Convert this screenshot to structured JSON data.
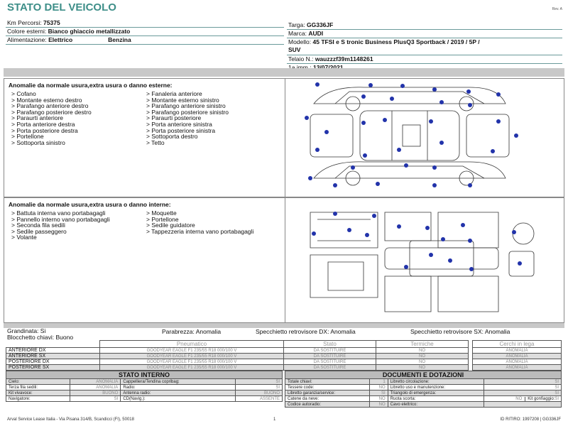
{
  "header": {
    "title": "STATO DEL VEICOLO",
    "rev": "Rev. A"
  },
  "vehicle": {
    "km_label": "Km Percorsi:",
    "km": "75375",
    "colore_label": "Colore esterni:",
    "colore": "Bianco ghiaccio metallizzato",
    "alim_label": "Alimentazione:",
    "alim1": "Elettrico",
    "alim2": "Benzina",
    "targa_label": "Targa:",
    "targa": "GG336JF",
    "marca_label": "Marca:",
    "marca": "AUDI",
    "modello_label": "Modello:",
    "modello": "45 TFSI e S tronic Business PlusQ3 Sportback / 2019 / 5P /",
    "modello2": "SUV",
    "telaio_label": "Telaio N.:",
    "telaio": "wauzzzf39m1148261",
    "imm_label": "1a imm.:",
    "imm": "13/07/2021"
  },
  "esterne": {
    "title": "Anomalie da normale usura,extra usura o danno esterne:",
    "col1": [
      "> Cofano",
      "> Montante esterno destro",
      "> Parafango anteriore destro",
      "> Parafango posteriore destro",
      "> Paraurti anteriore",
      "> Porta anteriore destra",
      "> Porta posteriore destra",
      "> Portellone",
      "> Sottoporta sinistro"
    ],
    "col2": [
      "> Fanaleria anteriore",
      "> Montante esterno sinistro",
      "> Parafango anteriore sinistro",
      "> Parafango posteriore sinistro",
      "> Paraurti posteriore",
      "> Porta anteriore sinistra",
      "> Porta posteriore sinistra",
      "> Sottoporta destro",
      "> Tetto"
    ]
  },
  "interne": {
    "title": "Anomalie da normale usura,extra usura o danno interne:",
    "col1": [
      "> Battuta interna vano portabagagli",
      "> Pannello interno vano portabagagli",
      "> Seconda fila sedili",
      "> Sedile passeggero",
      "> Volante"
    ],
    "col2": [
      "> Moquette",
      "> Portellone",
      "> Sedile guidatore",
      "> Tappezzeria interna vano portabagagli"
    ]
  },
  "misc": {
    "grandinata": "Grandinata: Si",
    "blocchetto": "Blocchetto chiavi: Buono",
    "parabrezza": "Parabrezza: Anomalia",
    "spec_dx": "Specchietto retrovisore DX: Anomalia",
    "spec_sx": "Specchietto retrovisore SX: Anomalia"
  },
  "tyres": {
    "headers": [
      "Pneumatico",
      "Stato",
      "Termiche"
    ],
    "cerchi_header": "Cerchi in lega",
    "rows": [
      {
        "pos": "ANTERIORE DX",
        "tyre": "GOODYEAR EAGLE F1 235/55 R18 000/100 V",
        "stato": "DA SOSTITUIRE",
        "termiche": "NO",
        "cerchi": "ANOMALIA"
      },
      {
        "pos": "ANTERIORE SX",
        "tyre": "GOODYEAR EAGLE F1 235/55 R18 000/100 V",
        "stato": "DA SOSTITUIRE",
        "termiche": "NO",
        "cerchi": "ANOMALIA"
      },
      {
        "pos": "POSTERIORE DX",
        "tyre": "GOODYEAR EAGLE F1 235/55 R18 000/100 V",
        "stato": "DA SOSTITUIRE",
        "termiche": "NO",
        "cerchi": "ANOMALIA"
      },
      {
        "pos": "POSTERIORE SX",
        "tyre": "GOODYEAR EAGLE F1 235/55 R18 000/100 V",
        "stato": "DA SOSTITUIRE",
        "termiche": "NO",
        "cerchi": "ANOMALIA"
      }
    ]
  },
  "interno": {
    "title": "STATO INTERNO",
    "rows": [
      [
        "Cielo:",
        "ANOMALIA",
        "Cappelliera/Tendina copribag:",
        "SI"
      ],
      [
        "Terza fila sedili:",
        "ANOMALIA",
        "Radio:",
        "SI"
      ],
      [
        "Kit vivavoce:",
        "BUONO",
        "Antenna radio:",
        "BUONO"
      ],
      [
        "Navigatore:",
        "SI",
        "CD(Navig.):",
        "ASSENTE"
      ]
    ]
  },
  "documenti": {
    "title": "DOCUMENTI E DOTAZIONI",
    "rows": [
      [
        "Totale chiavi:",
        "1",
        "Libretto circolazione:",
        "SI"
      ],
      [
        "Tessere code:",
        "NO",
        "Libretto uso e manutenzione:",
        "SI"
      ],
      [
        "Libretto garanzia/service:",
        "SI",
        "Triangolo di emergenza:",
        "SI"
      ],
      [
        "Catene da neve:",
        "NO",
        "Ruota scorta:",
        "NO"
      ],
      [
        "Codice autoradio:",
        "NO",
        "Cavo elettrico:",
        ""
      ]
    ],
    "kit_label": "Kit gonfiaggio:",
    "kit": "SI"
  },
  "footer": {
    "address": "Arval Service Lease Italia - Via Pisana 314/B, Scandicci (FI), 50018",
    "page": "1",
    "id": "ID RITIRO: 1997208 | GG336JF"
  },
  "colors": {
    "title": "#3d8e88",
    "dots": "#2233aa"
  }
}
